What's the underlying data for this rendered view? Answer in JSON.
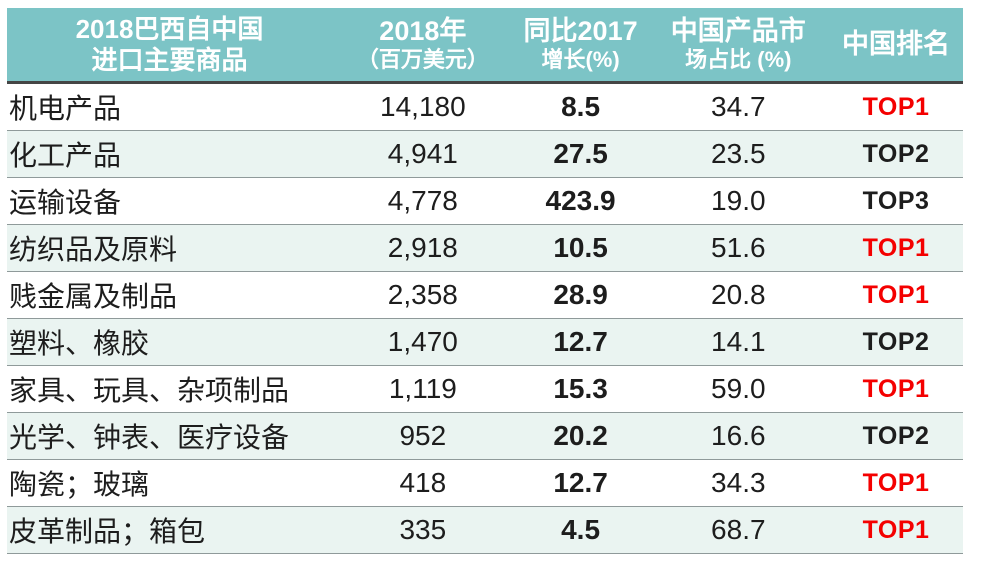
{
  "colors": {
    "header_bg": "#7cc4c6",
    "header_text": "#ffffff",
    "header_divider": "#454545",
    "divider": "#8f9a9a",
    "row_bg": "#ffffff",
    "row_alt_bg": "#eaf4f1",
    "text": "#1d1d1d",
    "rank_top_red": "#f40000"
  },
  "table": {
    "headers": [
      {
        "id": "commodity",
        "lines": [
          "2018巴西自中国",
          "进口主要商品"
        ]
      },
      {
        "id": "value_2018",
        "lines": [
          "2018年",
          "（百万美元）"
        ]
      },
      {
        "id": "yoy_growth",
        "lines": [
          "同比2017",
          "增长(%)"
        ]
      },
      {
        "id": "market_share",
        "lines": [
          "中国产品市",
          "场占比 (%)"
        ]
      },
      {
        "id": "china_rank",
        "lines": [
          "中国排名"
        ]
      }
    ],
    "rows": [
      {
        "commodity": "机电产品",
        "value_2018": "14,180",
        "yoy_growth": "8.5",
        "market_share": "34.7",
        "china_rank": "TOP1",
        "rank_highlight": true
      },
      {
        "commodity": "化工产品",
        "value_2018": "4,941",
        "yoy_growth": "27.5",
        "market_share": "23.5",
        "china_rank": "TOP2",
        "rank_highlight": false
      },
      {
        "commodity": "运输设备",
        "value_2018": "4,778",
        "yoy_growth": "423.9",
        "market_share": "19.0",
        "china_rank": "TOP3",
        "rank_highlight": false
      },
      {
        "commodity": "纺织品及原料",
        "value_2018": "2,918",
        "yoy_growth": "10.5",
        "market_share": "51.6",
        "china_rank": "TOP1",
        "rank_highlight": true
      },
      {
        "commodity": "贱金属及制品",
        "value_2018": "2,358",
        "yoy_growth": "28.9",
        "market_share": "20.8",
        "china_rank": "TOP1",
        "rank_highlight": true
      },
      {
        "commodity": "塑料、橡胶",
        "value_2018": "1,470",
        "yoy_growth": "12.7",
        "market_share": "14.1",
        "china_rank": "TOP2",
        "rank_highlight": false
      },
      {
        "commodity": "家具、玩具、杂项制品",
        "value_2018": "1,119",
        "yoy_growth": "15.3",
        "market_share": "59.0",
        "china_rank": "TOP1",
        "rank_highlight": true
      },
      {
        "commodity": "光学、钟表、医疗设备",
        "value_2018": "952",
        "yoy_growth": "20.2",
        "market_share": "16.6",
        "china_rank": "TOP2",
        "rank_highlight": false
      },
      {
        "commodity": "陶瓷；玻璃",
        "value_2018": "418",
        "yoy_growth": "12.7",
        "market_share": "34.3",
        "china_rank": "TOP1",
        "rank_highlight": true
      },
      {
        "commodity": "皮革制品；箱包",
        "value_2018": "335",
        "yoy_growth": "4.5",
        "market_share": "68.7",
        "china_rank": "TOP1",
        "rank_highlight": true
      }
    ]
  },
  "chart_data": {
    "type": "table",
    "title": "2018巴西自中国进口主要商品",
    "columns": [
      "2018巴西自中国进口主要商品",
      "2018年（百万美元）",
      "同比2017增长(%)",
      "中国产品市场占比 (%)",
      "中国排名"
    ],
    "rows": [
      [
        "机电产品",
        14180,
        8.5,
        34.7,
        "TOP1"
      ],
      [
        "化工产品",
        4941,
        27.5,
        23.5,
        "TOP2"
      ],
      [
        "运输设备",
        4778,
        423.9,
        19.0,
        "TOP3"
      ],
      [
        "纺织品及原料",
        2918,
        10.5,
        51.6,
        "TOP1"
      ],
      [
        "贱金属及制品",
        2358,
        28.9,
        20.8,
        "TOP1"
      ],
      [
        "塑料、橡胶",
        1470,
        12.7,
        14.1,
        "TOP2"
      ],
      [
        "家具、玩具、杂项制品",
        1119,
        15.3,
        59.0,
        "TOP1"
      ],
      [
        "光学、钟表、医疗设备",
        952,
        20.2,
        16.6,
        "TOP2"
      ],
      [
        "陶瓷；玻璃",
        418,
        12.7,
        34.3,
        "TOP1"
      ],
      [
        "皮革制品；箱包",
        335,
        4.5,
        68.7,
        "TOP1"
      ]
    ],
    "legend_note": "TOP1 ranks shown in red, other ranks in black",
    "header_style": "white text on teal background"
  }
}
